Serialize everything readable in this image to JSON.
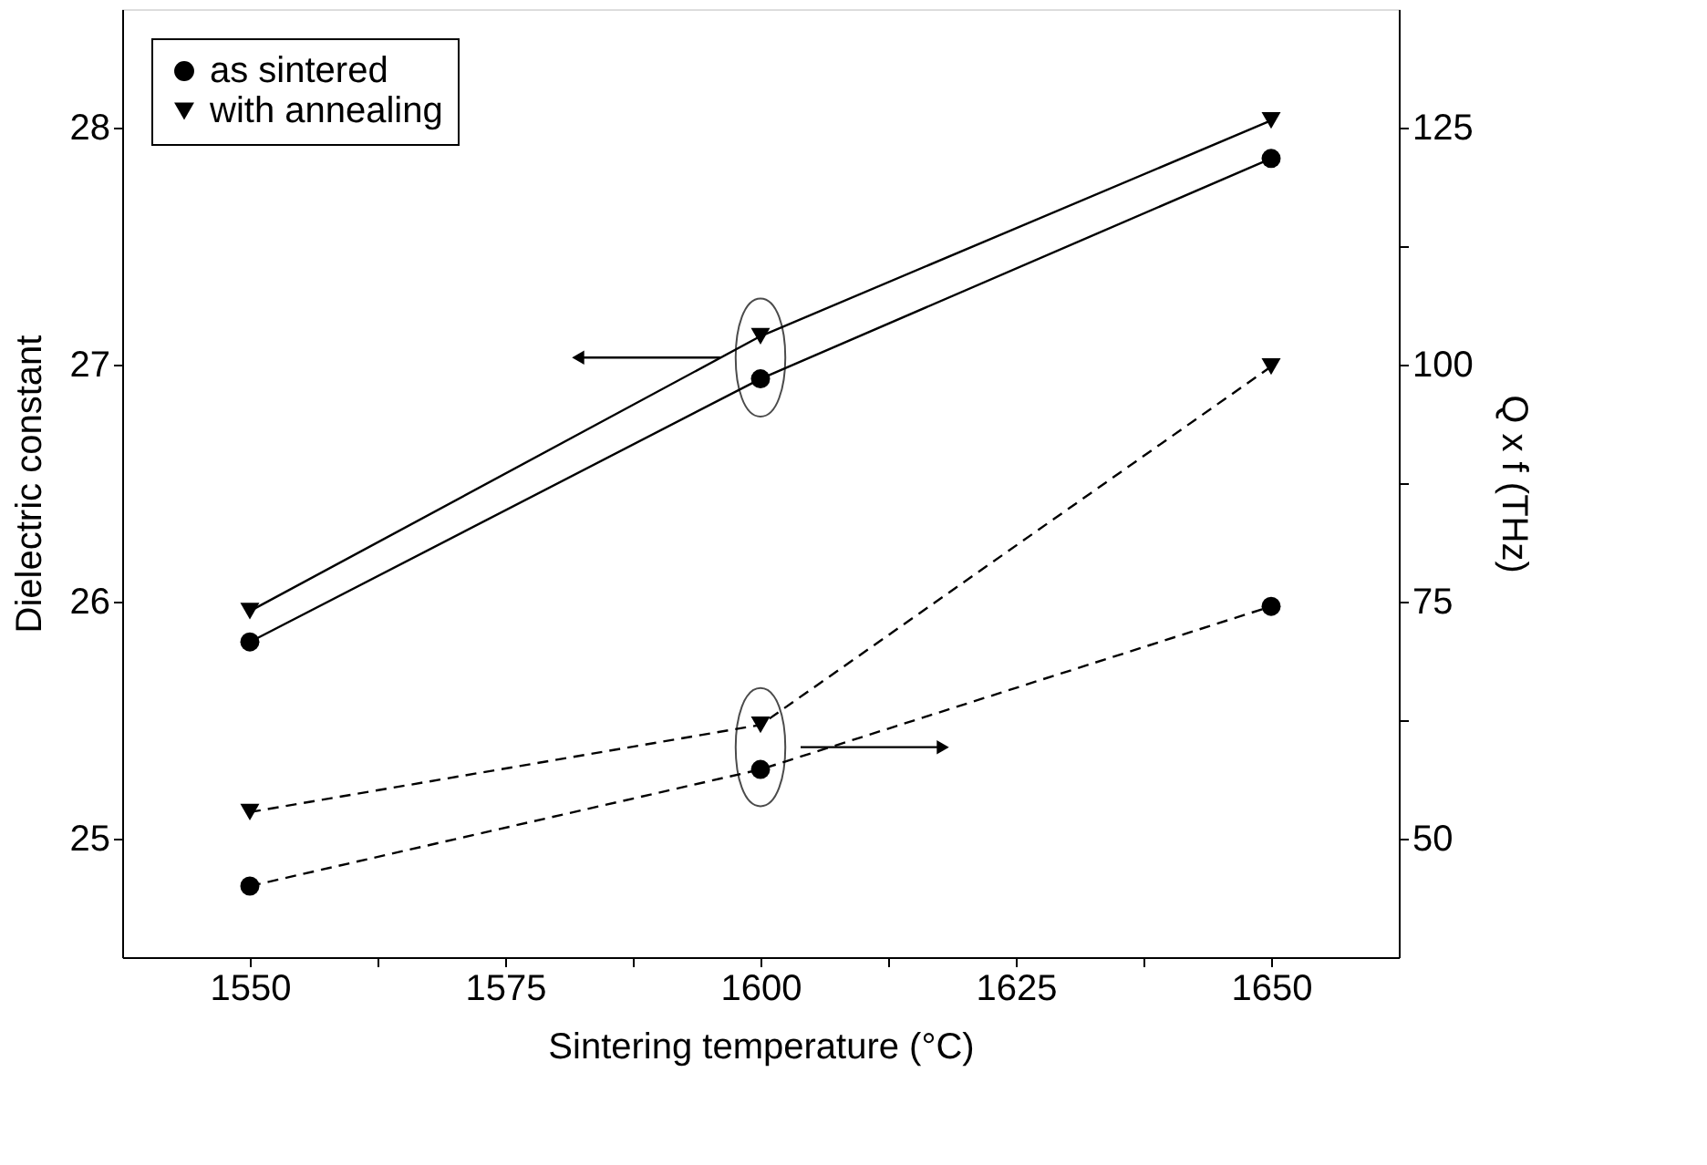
{
  "chart_data": {
    "type": "line",
    "xlabel": "Sintering temperature (°C)",
    "ylabel": "Dielectric constant",
    "y2label": "Q x f (THz)",
    "x": [
      1550,
      1600,
      1650
    ],
    "xlim": [
      1537.5,
      1662.5
    ],
    "xticks": [
      1550,
      {
        "value": 1562.5,
        "label": null
      },
      1575,
      {
        "value": 1587.5,
        "label": null
      },
      1600,
      {
        "value": 1612.5,
        "label": null
      },
      1625,
      {
        "value": 1637.5,
        "label": null
      },
      1650
    ],
    "ylim": [
      24.5,
      28.5
    ],
    "yticks": [
      25,
      {
        "value": 25.5,
        "label": null
      },
      26,
      {
        "value": 26.5,
        "label": null
      },
      27,
      {
        "value": 27.5,
        "label": null
      },
      28
    ],
    "y2lim": [
      37.5,
      137.5
    ],
    "y2ticks": [
      50,
      {
        "value": 62.5,
        "label": null
      },
      75,
      {
        "value": 87.5,
        "label": null
      },
      100,
      {
        "value": 112.5,
        "label": null
      },
      125
    ],
    "legend": "top left",
    "grid": false,
    "series": [
      {
        "name": "as sintered",
        "color": "#000000",
        "marker": "circle",
        "line_style": "solid",
        "values": [
          25.83,
          26.94,
          27.87
        ]
      },
      {
        "name": "with annealing",
        "color": "#000000",
        "marker": "triangle",
        "line_style": "solid",
        "values": [
          25.96,
          27.12,
          28.03
        ]
      },
      {
        "color": "#000000",
        "marker": "circle",
        "line_style": "dashed",
        "axis": "y2",
        "values": [
          45.0,
          57.3,
          74.5
        ]
      },
      {
        "color": "#000000",
        "marker": "triangle",
        "line_style": "dashed",
        "axis": "y2",
        "values": [
          52.8,
          62.0,
          99.8
        ]
      }
    ]
  }
}
